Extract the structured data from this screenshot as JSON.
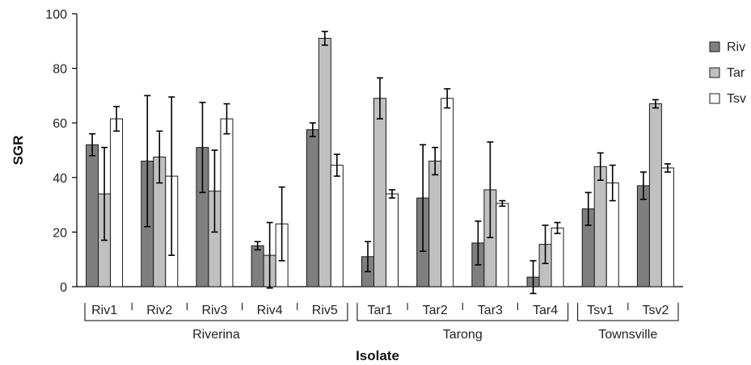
{
  "chart_data": {
    "type": "bar",
    "ylabel": "SGR",
    "xlabel": "Isolate",
    "ylim": [
      0,
      100
    ],
    "yticks": [
      0,
      20,
      40,
      60,
      80,
      100
    ],
    "legend_position": "right",
    "grid": false,
    "categories": [
      "Riv1",
      "Riv2",
      "Riv3",
      "Riv4",
      "Riv5",
      "Tar1",
      "Tar2",
      "Tar3",
      "Tar4",
      "Tsv1",
      "Tsv2"
    ],
    "groups": [
      {
        "label": "Riverina",
        "from": 0,
        "to": 4
      },
      {
        "label": "Tarong",
        "from": 5,
        "to": 8
      },
      {
        "label": "Townsville",
        "from": 9,
        "to": 10
      }
    ],
    "series": [
      {
        "name": "Riv",
        "color": "#7f7f7f",
        "values": [
          52,
          46,
          51,
          15,
          57.5,
          11,
          32.5,
          16,
          3.5,
          28.5,
          37
        ],
        "errors": [
          4,
          24,
          16.5,
          1.5,
          2.5,
          5.5,
          19.5,
          8,
          6,
          6,
          5
        ]
      },
      {
        "name": "Tar",
        "color": "#c0c0c0",
        "values": [
          34,
          47.5,
          35,
          11.5,
          91,
          69,
          46,
          35.5,
          15.5,
          44,
          67
        ],
        "errors": [
          17,
          9.5,
          15,
          12,
          2.5,
          7.5,
          5,
          17.5,
          7,
          5,
          1.5
        ]
      },
      {
        "name": "Tsv",
        "color": "#ffffff",
        "values": [
          61.5,
          40.5,
          61.5,
          23,
          44.5,
          34,
          69,
          30.5,
          21.5,
          38,
          43.5
        ],
        "errors": [
          4.5,
          29,
          5.5,
          13.5,
          4,
          1.5,
          3.5,
          1,
          2,
          6.5,
          1.5
        ]
      }
    ]
  }
}
